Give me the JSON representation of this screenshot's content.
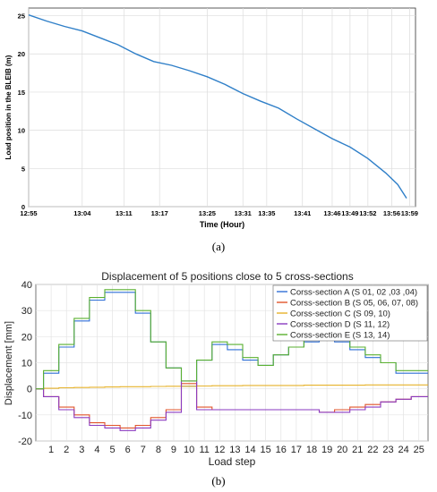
{
  "captions": {
    "a": "(a)",
    "b": "(b)"
  },
  "colors": {
    "line_a": "#2f7fc8",
    "series": [
      "#2f6fd6",
      "#e0542a",
      "#e6b22a",
      "#8a3ac0",
      "#5ab030"
    ]
  },
  "chart_data": [
    {
      "type": "line",
      "title": "",
      "xlabel": "Time (Hour)",
      "ylabel": "Load position in the BLEIB (m)",
      "x_ticks": [
        "12:55",
        "13:04",
        "13:11",
        "13:17",
        "13:25",
        "13:31",
        "13:35",
        "13:41",
        "13:46",
        "13:49",
        "13:52",
        "13:56",
        "13:59"
      ],
      "x_tick_minutes": [
        0,
        9,
        16,
        22,
        30,
        36,
        40,
        46,
        51,
        54,
        57,
        61,
        64
      ],
      "xlim_minutes": [
        0,
        65
      ],
      "ylim": [
        0,
        26
      ],
      "y_ticks": [
        0,
        5,
        10,
        15,
        20,
        25
      ],
      "grid": true,
      "series": [
        {
          "x_minutes": [
            0,
            3,
            6,
            9,
            12,
            15,
            18,
            21,
            24,
            27,
            30,
            33,
            36,
            39,
            42,
            45,
            48,
            51,
            54,
            57,
            60,
            62,
            63.5
          ],
          "y": [
            25.1,
            24.3,
            23.6,
            23.0,
            22.1,
            21.2,
            20.0,
            19.0,
            18.5,
            17.8,
            17.0,
            16.0,
            14.8,
            13.8,
            12.9,
            11.5,
            10.2,
            8.9,
            7.8,
            6.3,
            4.4,
            2.9,
            1.1
          ]
        }
      ]
    },
    {
      "type": "line",
      "title": "Displacement of 5 positions close to 5 cross-sections",
      "xlabel": "Load step",
      "ylabel": "Displacement [mm]",
      "x_ticks": [
        1,
        2,
        3,
        4,
        5,
        6,
        7,
        8,
        9,
        10,
        11,
        12,
        13,
        14,
        15,
        16,
        17,
        18,
        19,
        20,
        21,
        22,
        23,
        24,
        25
      ],
      "xlim": [
        0,
        25.6
      ],
      "ylim": [
        -20,
        40
      ],
      "y_ticks": [
        -20,
        -10,
        0,
        10,
        20,
        30,
        40
      ],
      "grid": true,
      "legend_position": "top-right",
      "step": true,
      "series": [
        {
          "name": "Corss-section A (S 01, 02 ,03 ,04)",
          "values": [
            0,
            6,
            16,
            26,
            34,
            37,
            37,
            29,
            18,
            8,
            1,
            11,
            17,
            15,
            11,
            9,
            13,
            16,
            18,
            19,
            18,
            15,
            12,
            10,
            6,
            6
          ]
        },
        {
          "name": "Corss-section B (S 05, 06, 07, 08)",
          "values": [
            0,
            -3,
            -7,
            -10,
            -13,
            -14,
            -15,
            -14,
            -11,
            -8,
            2,
            -7,
            -8,
            -8,
            -8,
            -8,
            -8,
            -8,
            -8,
            -9,
            -8,
            -7,
            -6,
            -5,
            -4,
            -3
          ]
        },
        {
          "name": "Corss-section C (S 09, 10)",
          "values": [
            0,
            0.2,
            0.4,
            0.5,
            0.6,
            0.7,
            0.8,
            0.8,
            0.9,
            1.0,
            1.0,
            1.1,
            1.2,
            1.2,
            1.3,
            1.3,
            1.3,
            1.3,
            1.4,
            1.4,
            1.4,
            1.4,
            1.5,
            1.5,
            1.5,
            1.5
          ]
        },
        {
          "name": "Corss-section D (S 11, 12)",
          "values": [
            0,
            -3,
            -8,
            -11,
            -14,
            -15,
            -16,
            -15,
            -12,
            -9,
            3,
            -8,
            -8,
            -8,
            -8,
            -8,
            -8,
            -8,
            -8,
            -9,
            -9,
            -8,
            -7,
            -5,
            -4,
            -3
          ]
        },
        {
          "name": "Corss-section E (S 13, 14)",
          "values": [
            0,
            7,
            17,
            27,
            35,
            38,
            38,
            30,
            18,
            8,
            3,
            11,
            18,
            17,
            12,
            9,
            13,
            16,
            19,
            20,
            19,
            16,
            13,
            10,
            7,
            7
          ]
        }
      ]
    }
  ]
}
